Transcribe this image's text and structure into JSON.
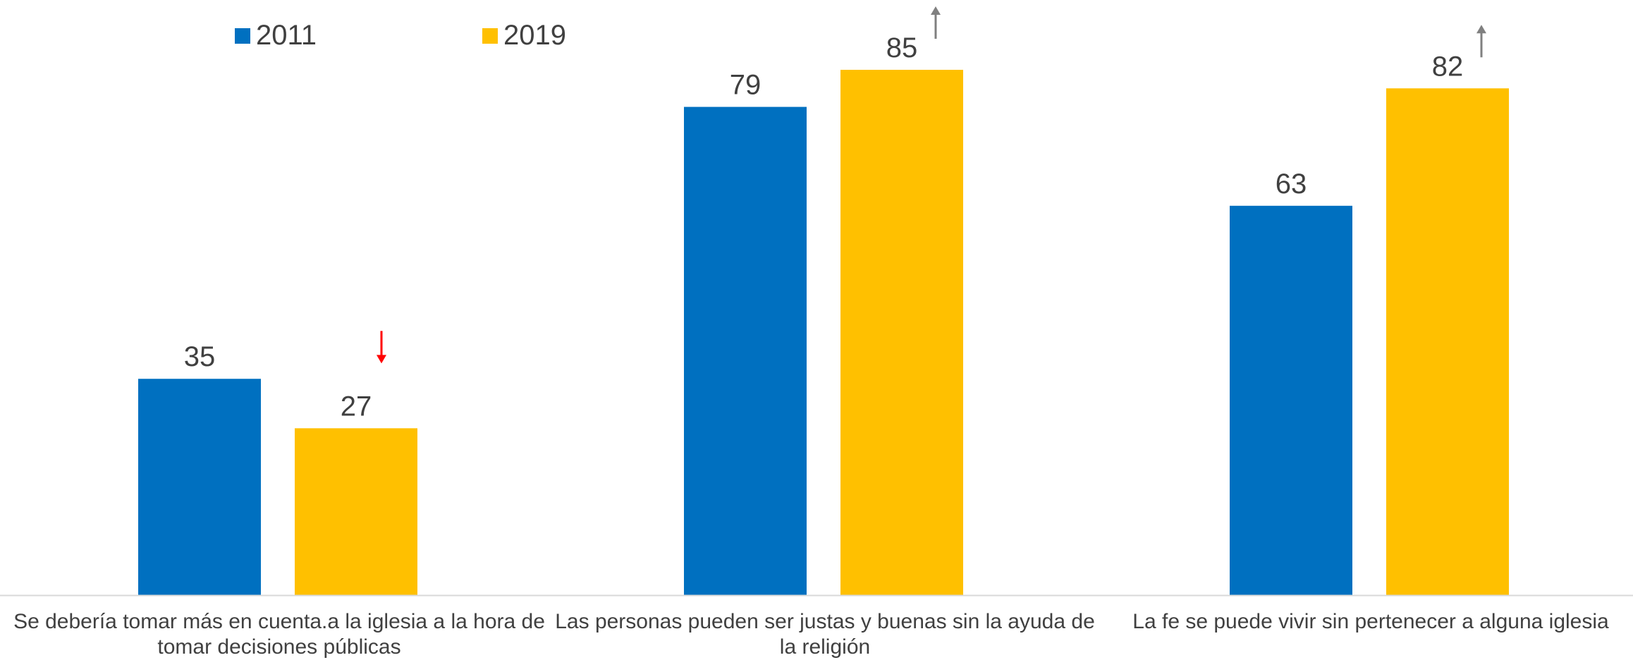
{
  "chart_data": {
    "type": "bar",
    "categories": [
      "Se debería tomar más en cuenta.a la iglesia a la hora de tomar decisiones públicas",
      "Las personas pueden ser justas y buenas sin la ayuda de la religión",
      "La fe se puede vivir sin pertenecer a alguna iglesia"
    ],
    "series": [
      {
        "name": "2011",
        "color": "#0070C0",
        "values": [
          35,
          79,
          63
        ]
      },
      {
        "name": "2019",
        "color": "#FFC000",
        "values": [
          27,
          85,
          82
        ]
      }
    ],
    "trend_markers": [
      {
        "category_index": 0,
        "series_index": 1,
        "direction": "down",
        "color": "#FF0000"
      },
      {
        "category_index": 1,
        "series_index": 1,
        "direction": "up",
        "color": "#808080"
      },
      {
        "category_index": 2,
        "series_index": 1,
        "direction": "up",
        "color": "#808080"
      }
    ],
    "ylim": [
      0,
      90
    ],
    "grid": false,
    "legend_position": "top-left",
    "title": "",
    "xlabel": "",
    "ylabel": ""
  }
}
